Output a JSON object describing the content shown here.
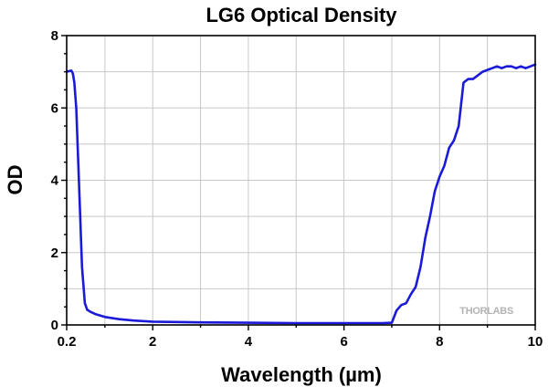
{
  "chart_data": {
    "type": "line",
    "title": "LG6 Optical Density",
    "xlabel": "Wavelength (µm)",
    "ylabel": "OD",
    "xlim": [
      0.2,
      10
    ],
    "ylim": [
      0,
      8
    ],
    "grid": true,
    "x_ticks": [
      0.2,
      2,
      4,
      6,
      8,
      10
    ],
    "x_tick_labels": [
      "0.2",
      "2",
      "4",
      "6",
      "8",
      "10"
    ],
    "y_ticks": [
      0,
      2,
      4,
      6,
      8
    ],
    "y_tick_labels": [
      "0",
      "2",
      "4",
      "6",
      "8"
    ],
    "series": [
      {
        "name": "LG6",
        "color": "#1a1ad8",
        "x": [
          0.2,
          0.26,
          0.3,
          0.33,
          0.36,
          0.4,
          0.45,
          0.52,
          0.58,
          0.63,
          0.7,
          0.8,
          1.0,
          1.3,
          1.6,
          2.0,
          3.0,
          4.0,
          5.0,
          6.0,
          6.8,
          7.0,
          7.1,
          7.2,
          7.3,
          7.4,
          7.5,
          7.6,
          7.7,
          7.8,
          7.9,
          8.0,
          8.1,
          8.2,
          8.3,
          8.4,
          8.5,
          8.6,
          8.7,
          8.8,
          8.9,
          9.0,
          9.1,
          9.2,
          9.3,
          9.4,
          9.5,
          9.6,
          9.7,
          9.8,
          9.9,
          10.0
        ],
        "y": [
          7.0,
          7.02,
          7.03,
          6.95,
          6.7,
          6.0,
          4.2,
          1.6,
          0.6,
          0.42,
          0.36,
          0.3,
          0.22,
          0.16,
          0.12,
          0.09,
          0.07,
          0.06,
          0.05,
          0.05,
          0.05,
          0.06,
          0.4,
          0.55,
          0.6,
          0.85,
          1.05,
          1.6,
          2.4,
          3.0,
          3.7,
          4.1,
          4.4,
          4.9,
          5.1,
          5.5,
          6.7,
          6.8,
          6.8,
          6.9,
          7.0,
          7.05,
          7.1,
          7.15,
          7.1,
          7.15,
          7.15,
          7.1,
          7.15,
          7.1,
          7.15,
          7.2
        ]
      }
    ],
    "watermark": "THORLABS"
  }
}
